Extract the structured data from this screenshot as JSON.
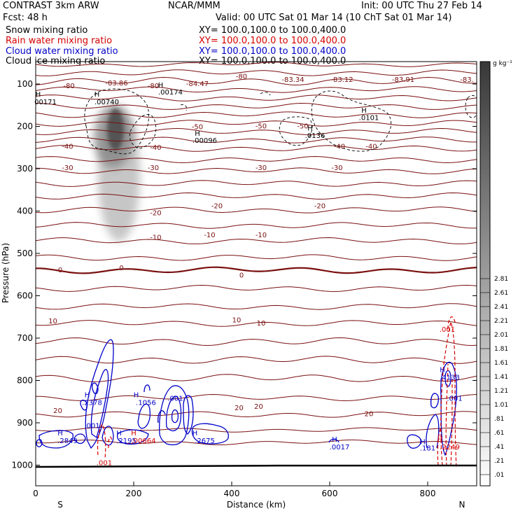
{
  "header": {
    "left1": "CONTRAST  3km ARW",
    "left2": "Fcst:   48 h",
    "center": "NCAR/MMM",
    "init": "Init: 00 UTC Thu 27 Feb 14",
    "valid": "Valid: 00 UTC Sat 01 Mar 14 (10 ChT Sat 01 Mar 14)"
  },
  "legend": [
    {
      "label": "Snow mixing ratio",
      "xy": "XY= 100.0,100.0 to 100.0,400.0",
      "color": "#000000"
    },
    {
      "label": "Rain water mixing ratio",
      "xy": "XY= 100.0,100.0 to 100.0,400.0",
      "color": "#d40000"
    },
    {
      "label": "Cloud water mixing ratio",
      "xy": "XY= 100.0,100.0 to 100.0,400.0",
      "color": "#0000c8"
    },
    {
      "label": "Cloud ice mixing ratio",
      "xy": "XY= 100.0,100.0 to 100.0,400.0",
      "color": "#000000"
    }
  ],
  "chart_data": {
    "type": "contour",
    "ylabel": "Pressure (hPa)",
    "xlabel": "Distance (km)",
    "xlim": [
      0,
      900
    ],
    "ylim": [
      1050,
      75
    ],
    "xticks": [
      0,
      200,
      400,
      600,
      800
    ],
    "yticks": [
      100,
      200,
      300,
      400,
      500,
      600,
      700,
      800,
      900,
      1000
    ],
    "left_end_label": "S",
    "right_end_label": "N",
    "colorbar": {
      "unit": "g kg⁻¹",
      "ticks": [
        ".01",
        ".21",
        ".41",
        ".61",
        ".81",
        "1.01",
        "1.21",
        "1.41",
        "1.61",
        "1.81",
        "2.01",
        "2.21",
        "2.41",
        "2.61",
        "2.81"
      ]
    },
    "temperature_labels": [
      {
        "t": "-80",
        "x": 68,
        "p": 110
      },
      {
        "t": "-80",
        "x": 240,
        "p": 110
      },
      {
        "t": "-80",
        "x": 420,
        "p": 88
      },
      {
        "t": "-83.86",
        "x": 165,
        "p": 103
      },
      {
        "t": "-84.47",
        "x": 330,
        "p": 105
      },
      {
        "t": "-83.34",
        "x": 525,
        "p": 95
      },
      {
        "t": "-83.12",
        "x": 625,
        "p": 95
      },
      {
        "t": "-83.91",
        "x": 750,
        "p": 95
      },
      {
        "t": "-83.",
        "x": 880,
        "p": 95
      },
      {
        "t": "-50",
        "x": 330,
        "p": 207
      },
      {
        "t": "-50",
        "x": 460,
        "p": 205
      },
      {
        "t": "-50",
        "x": 545,
        "p": 205
      },
      {
        "t": "-40",
        "x": 65,
        "p": 253
      },
      {
        "t": "-40",
        "x": 245,
        "p": 255
      },
      {
        "t": "-40",
        "x": 620,
        "p": 253
      },
      {
        "t": "-40",
        "x": 685,
        "p": 253
      },
      {
        "t": "-30",
        "x": 65,
        "p": 303
      },
      {
        "t": "-30",
        "x": 240,
        "p": 303
      },
      {
        "t": "-30",
        "x": 460,
        "p": 303
      },
      {
        "t": "-30",
        "x": 615,
        "p": 303
      },
      {
        "t": "-20",
        "x": 245,
        "p": 410
      },
      {
        "t": "-20",
        "x": 370,
        "p": 393
      },
      {
        "t": "-20",
        "x": 580,
        "p": 393
      },
      {
        "t": "-10",
        "x": 245,
        "p": 468
      },
      {
        "t": "-10",
        "x": 355,
        "p": 462
      },
      {
        "t": "-10",
        "x": 460,
        "p": 462
      },
      {
        "t": "0",
        "x": 50,
        "p": 545
      },
      {
        "t": "0",
        "x": 175,
        "p": 540
      },
      {
        "t": "0",
        "x": 420,
        "p": 557
      },
      {
        "t": "10",
        "x": 35,
        "p": 665
      },
      {
        "t": "10",
        "x": 410,
        "p": 663
      },
      {
        "t": "10",
        "x": 460,
        "p": 670
      },
      {
        "t": "20",
        "x": 45,
        "p": 877
      },
      {
        "t": "20",
        "x": 415,
        "p": 870
      },
      {
        "t": "20",
        "x": 455,
        "p": 867
      },
      {
        "t": "20",
        "x": 680,
        "p": 884
      }
    ],
    "snow_labels": [
      {
        "t": "H",
        "x": 125,
        "p": 130
      },
      {
        "t": ".00740",
        "x": 145,
        "p": 148
      },
      {
        "t": "H",
        "x": 255,
        "p": 108
      },
      {
        "t": ".00174",
        "x": 275,
        "p": 125
      },
      {
        "t": "H",
        "x": 330,
        "p": 222
      },
      {
        "t": ".00096",
        "x": 345,
        "p": 239
      },
      {
        "t": "H",
        "x": 560,
        "p": 210
      },
      {
        "t": ".0136",
        "x": 570,
        "p": 227
      },
      {
        "t": "H",
        "x": 670,
        "p": 168
      },
      {
        "t": ".0101",
        "x": 680,
        "p": 185
      },
      {
        "t": "H",
        "x": 5,
        "p": 130
      },
      {
        "t": "00171",
        "x": 20,
        "p": 148
      }
    ],
    "cloud_water_labels": [
      {
        "t": "H",
        "x": 50,
        "p": 930
      },
      {
        "t": ".2849",
        "x": 65,
        "p": 948
      },
      {
        "t": "H",
        "x": 105,
        "p": 840
      },
      {
        "t": ".2378",
        "x": 115,
        "p": 858
      },
      {
        "t": ".001",
        "x": 115,
        "p": 912
      },
      {
        "t": "H",
        "x": 205,
        "p": 840
      },
      {
        "t": ".1056",
        "x": 225,
        "p": 858
      },
      {
        "t": ".001",
        "x": 285,
        "p": 848
      },
      {
        "t": "H",
        "x": 170,
        "p": 930
      },
      {
        "t": ".2195",
        "x": 185,
        "p": 948
      },
      {
        "t": "H",
        "x": 325,
        "p": 930
      },
      {
        "t": ".2675",
        "x": 345,
        "p": 948
      },
      {
        "t": "H",
        "x": 610,
        "p": 945
      },
      {
        "t": ".0017",
        "x": 620,
        "p": 963
      },
      {
        "t": "H",
        "x": 790,
        "p": 950
      },
      {
        "t": ".181",
        "x": 800,
        "p": 965
      },
      {
        "t": "H",
        "x": 830,
        "p": 780
      },
      {
        "t": ".4133",
        "x": 845,
        "p": 798
      },
      {
        "t": ".001",
        "x": 855,
        "p": 848
      }
    ],
    "rain_labels": [
      {
        "t": "H",
        "x": 200,
        "p": 930
      },
      {
        "t": ".00664",
        "x": 220,
        "p": 948
      },
      {
        "t": ".001",
        "x": 140,
        "p": 1000
      },
      {
        "t": "H",
        "x": 825,
        "p": 945
      },
      {
        "t": ".2249",
        "x": 845,
        "p": 963
      },
      {
        "t": ".001",
        "x": 840,
        "p": 685
      }
    ]
  }
}
